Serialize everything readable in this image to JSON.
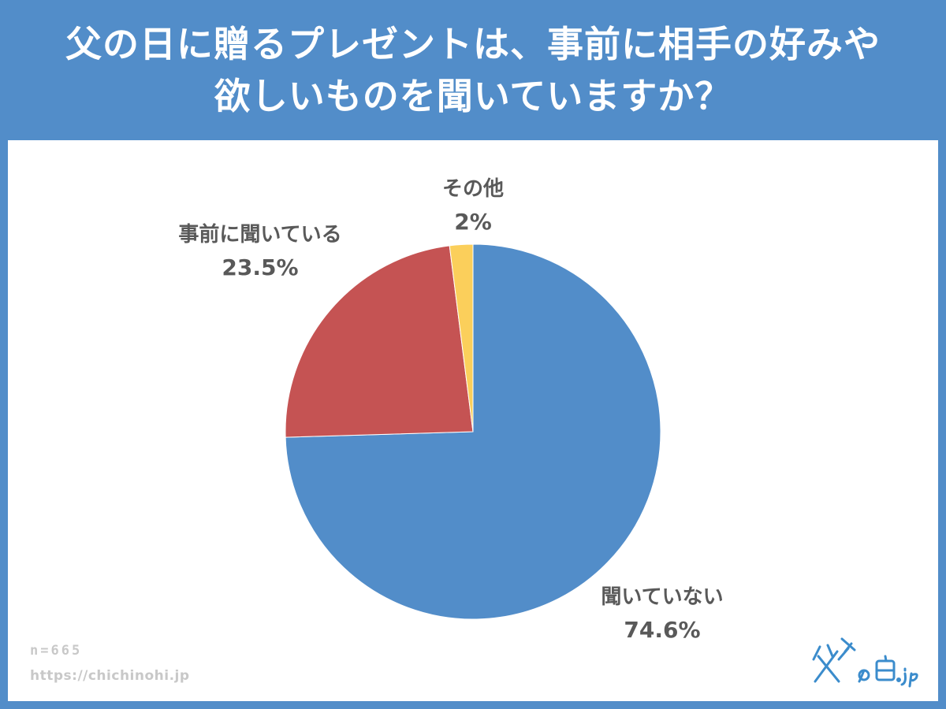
{
  "header": {
    "line1": "父の日に贈るプレゼントは、事前に相手の好みや",
    "line2": "欲しいものを聞いていますか？"
  },
  "chart_data": {
    "type": "pie",
    "start_angle": "12 o'clock",
    "direction": "clockwise",
    "slices": [
      {
        "label": "聞いていない",
        "value": 74.6,
        "display": "74.6%",
        "color": "#528dc9"
      },
      {
        "label": "事前に聞いている",
        "value": 23.5,
        "display": "23.5%",
        "color": "#c55353"
      },
      {
        "label": "その他",
        "value": 2,
        "display": "2%",
        "color": "#fbcf5b"
      }
    ]
  },
  "footer": {
    "sample": "n=665",
    "url": "https://chichinohi.jp"
  },
  "logo": {
    "text": "父の日.jp",
    "color": "#3b8ccc"
  }
}
